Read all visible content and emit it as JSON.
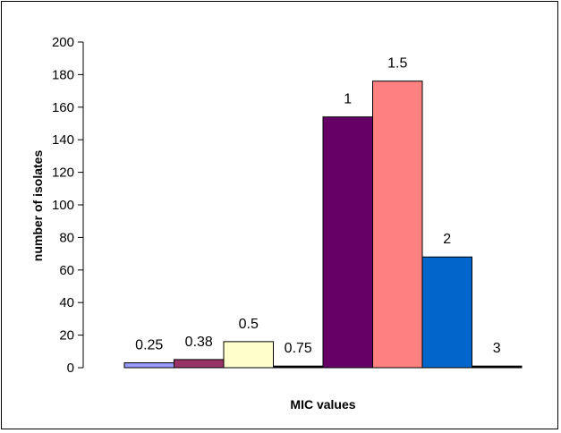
{
  "chart_data": {
    "type": "bar",
    "title": "",
    "xlabel": "MIC values",
    "ylabel": "number of isolates",
    "ylim": [
      0,
      200
    ],
    "ytick_step": 20,
    "grid": false,
    "legend": "none",
    "categories": [
      "0.25",
      "0.38",
      "0.5",
      "0.75",
      "1",
      "1.5",
      "2",
      "3"
    ],
    "values": [
      3,
      5,
      16,
      1,
      154,
      176,
      68,
      1
    ],
    "colors": [
      "#9999FF",
      "#993366",
      "#FFFFCC",
      "#000000",
      "#660066",
      "#FF8080",
      "#0066CC",
      "#000000"
    ],
    "data_labels": [
      "0.25",
      "0.38",
      "0.5",
      "0.75",
      "1",
      "1.5",
      "2",
      "3"
    ]
  }
}
